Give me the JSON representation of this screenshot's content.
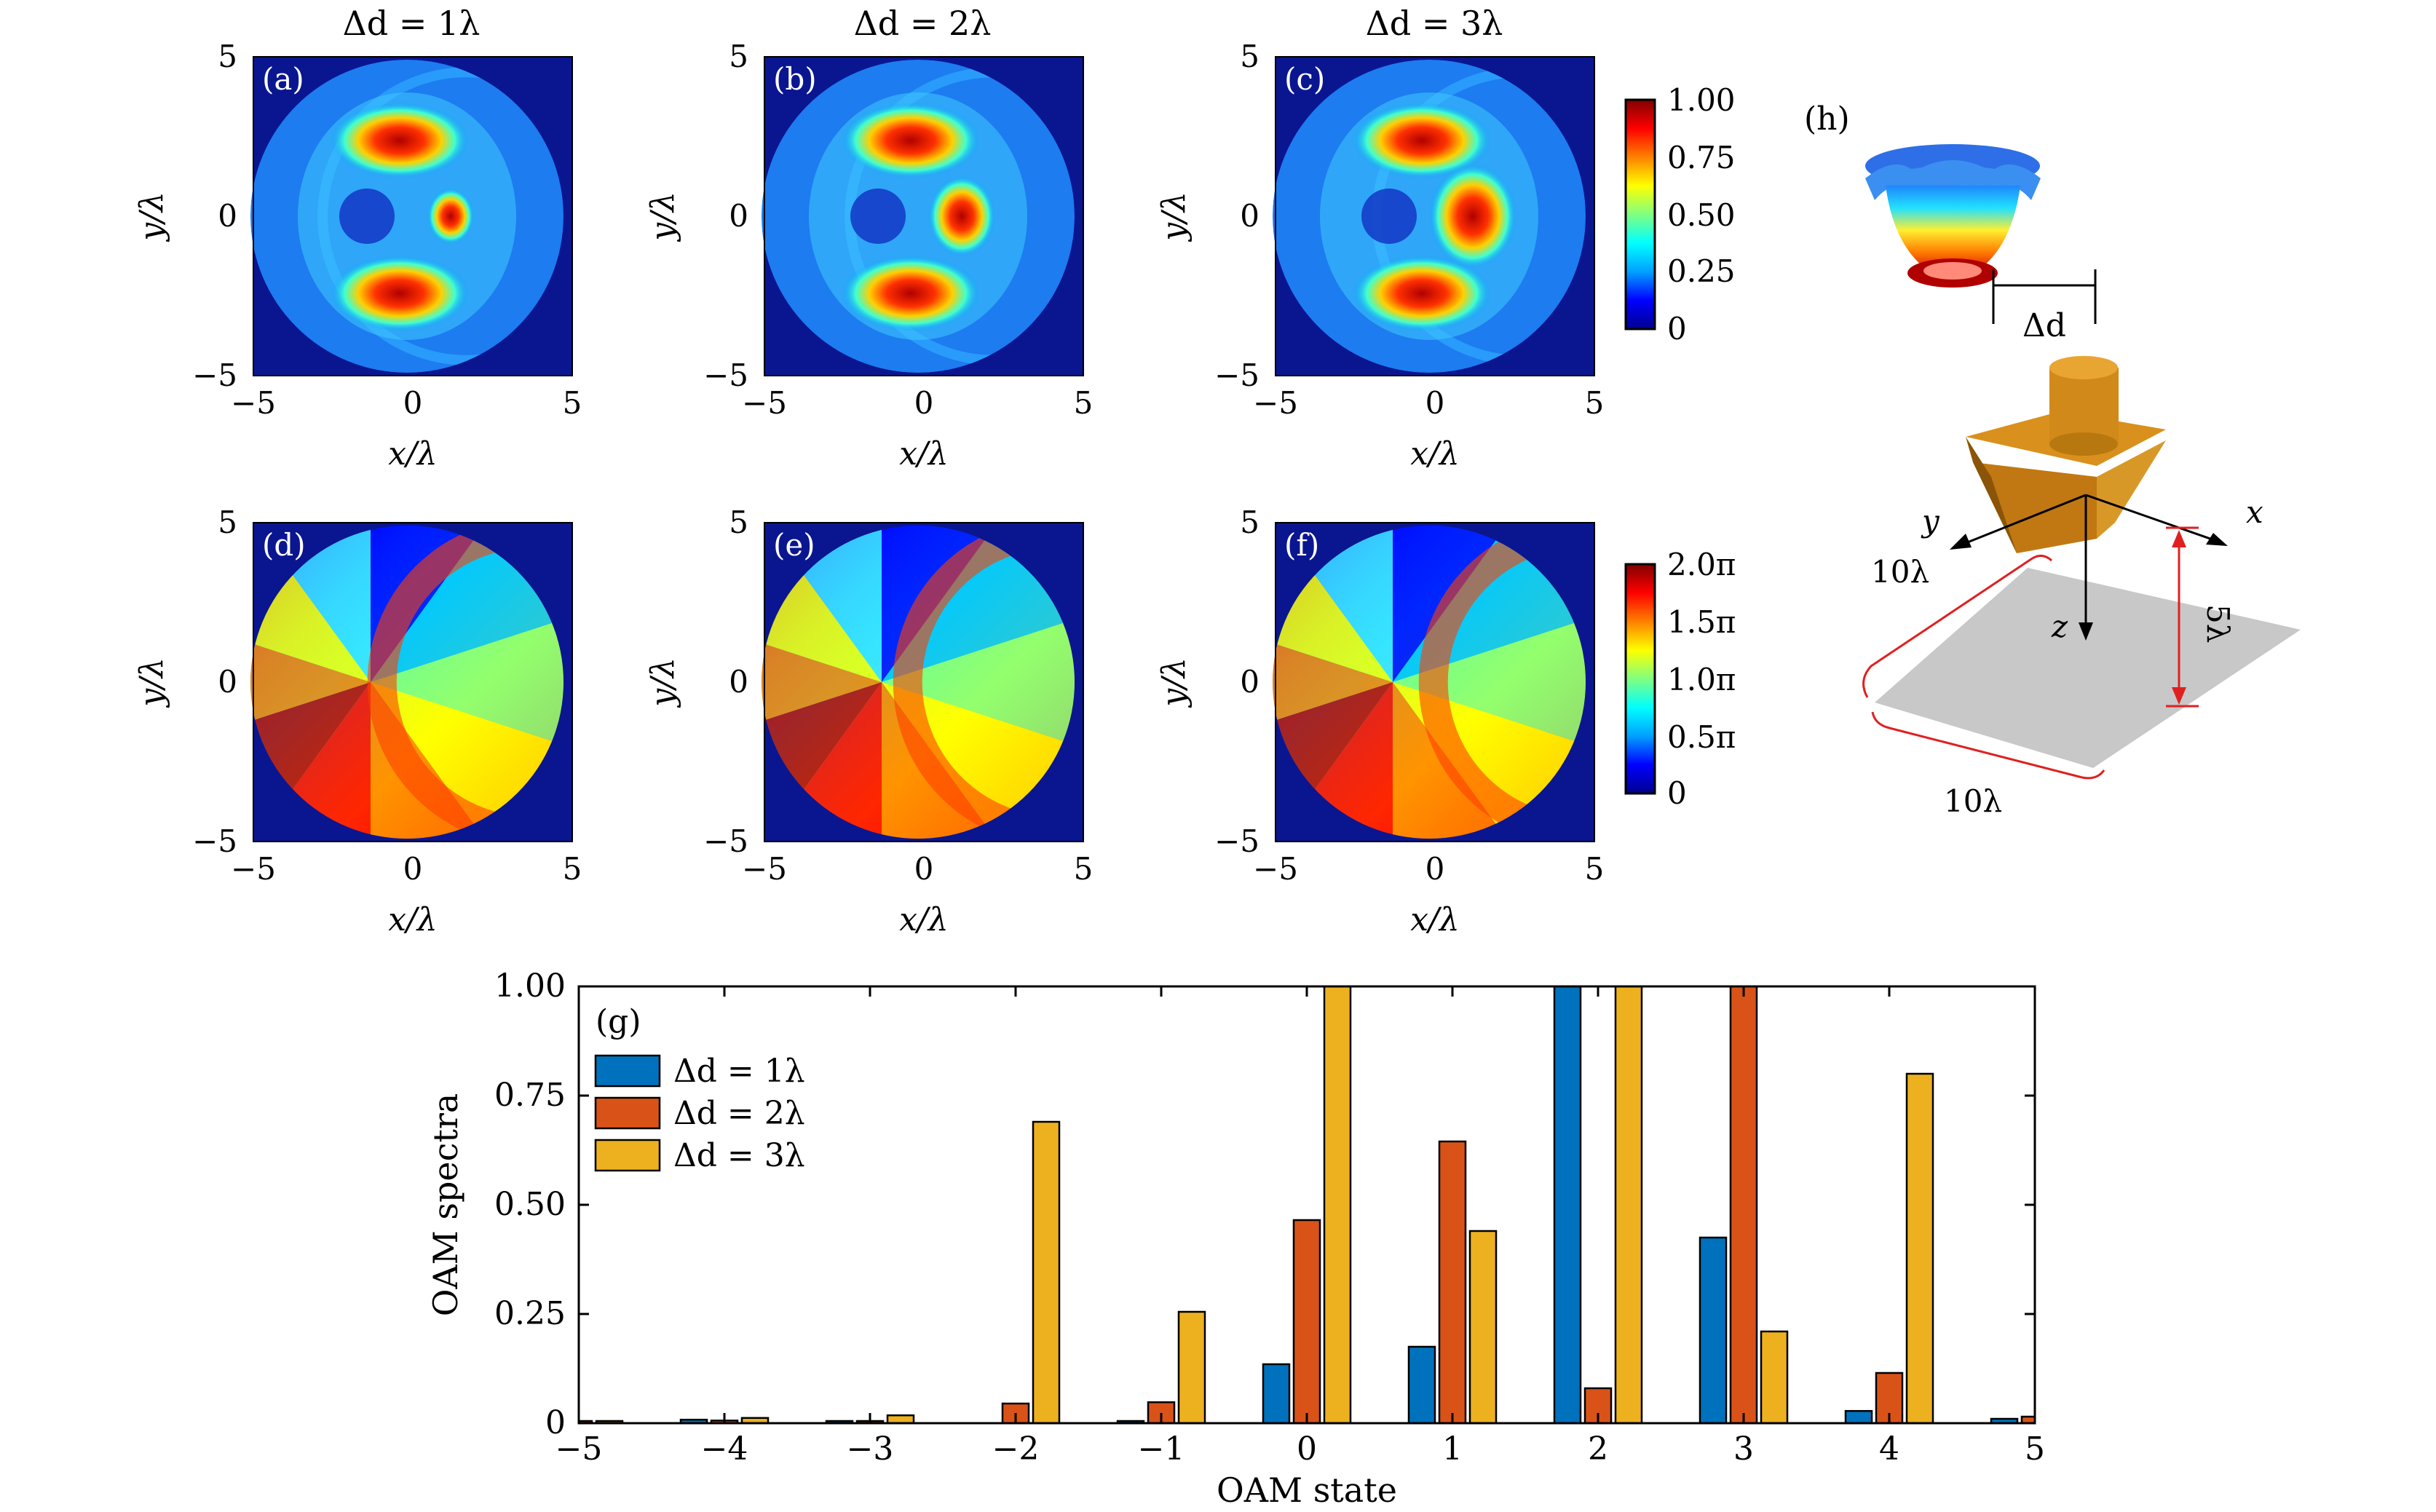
{
  "colormap": [
    "#00008f",
    "#0000ff",
    "#00a0ff",
    "#00ffff",
    "#80ff80",
    "#ffff00",
    "#ff8000",
    "#ff0000",
    "#800000"
  ],
  "frame_color": "#0a1690",
  "column_titles": [
    "Δd = 1λ",
    "Δd = 2λ",
    "Δd = 3λ"
  ],
  "map_axes": {
    "xlabel": "x/λ",
    "ylabel": "y/λ",
    "xticks": [
      "−5",
      "0",
      "5"
    ],
    "yticks": [
      "5",
      "0",
      "−5"
    ],
    "range": [
      -5,
      5
    ]
  },
  "panels": [
    {
      "label": "(a)",
      "kind": "intensity",
      "delta_d": 1
    },
    {
      "label": "(b)",
      "kind": "intensity",
      "delta_d": 2
    },
    {
      "label": "(c)",
      "kind": "intensity",
      "delta_d": 3
    },
    {
      "label": "(d)",
      "kind": "phase",
      "delta_d": 1
    },
    {
      "label": "(e)",
      "kind": "phase",
      "delta_d": 2
    },
    {
      "label": "(f)",
      "kind": "phase",
      "delta_d": 3
    }
  ],
  "colorbar_intensity": {
    "ticks": [
      "1.00",
      "0.75",
      "0.50",
      "0.25",
      "0"
    ]
  },
  "colorbar_phase": {
    "ticks": [
      "2.0π",
      "1.5π",
      "1.0π",
      "0.5π",
      "0"
    ]
  },
  "schematic": {
    "label": "(h)",
    "delta_label": "Δd",
    "axis_x": "x",
    "axis_y": "y",
    "axis_z": "z",
    "dim_side1": "10λ",
    "dim_side2": "10λ",
    "dim_height": "5λ",
    "colors": {
      "metal": "#d18a1a",
      "metal_dark": "#a86810",
      "plane": "#c8c8c8",
      "dim": "#e02020"
    }
  },
  "chart_data": {
    "type": "bar",
    "label": "(g)",
    "xlabel": "OAM state",
    "ylabel": "OAM spectra",
    "categories": [
      -5,
      -4,
      -3,
      -2,
      -1,
      0,
      1,
      2,
      3,
      4,
      5
    ],
    "ylim": [
      0,
      1.0
    ],
    "yticks": [
      "0",
      "0.25",
      "0.50",
      "0.75",
      "1.00"
    ],
    "xticks": [
      "−5",
      "−4",
      "−3",
      "−2",
      "−1",
      "0",
      "1",
      "2",
      "3",
      "4",
      "5"
    ],
    "legend_position": "top-left",
    "series": [
      {
        "name": "Δd = 1λ",
        "color": "#0072bd",
        "values": [
          0.005,
          0.008,
          0.002,
          0.0,
          0.005,
          0.135,
          0.175,
          1.0,
          0.425,
          0.028,
          0.01
        ]
      },
      {
        "name": "Δd = 2λ",
        "color": "#d95319",
        "values": [
          0.004,
          0.006,
          0.003,
          0.045,
          0.048,
          0.465,
          0.645,
          0.08,
          1.0,
          0.115,
          0.015
        ]
      },
      {
        "name": "Δd = 3λ",
        "color": "#edb120",
        "values": [
          0.003,
          0.012,
          0.018,
          0.69,
          0.255,
          1.0,
          0.44,
          1.0,
          0.21,
          0.8,
          0.0
        ]
      }
    ]
  }
}
